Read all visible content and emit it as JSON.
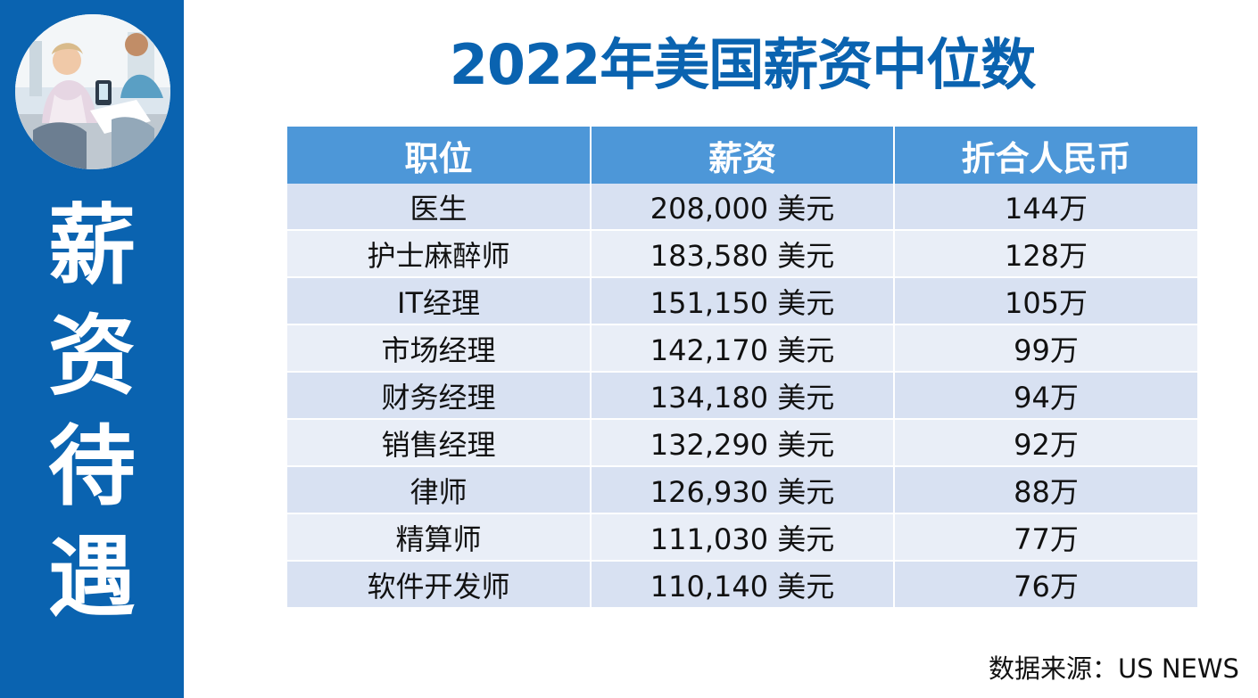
{
  "sidebar": {
    "title_chars": [
      "薪",
      "资",
      "待",
      "遇"
    ]
  },
  "page": {
    "title": "2022年美国薪资中位数"
  },
  "table": {
    "headers": [
      "职位",
      "薪资",
      "折合人民币"
    ],
    "rows": [
      [
        "医生",
        "208,000 美元",
        "144万"
      ],
      [
        "护士麻醉师",
        "183,580 美元",
        "128万"
      ],
      [
        "IT经理",
        "151,150 美元",
        "105万"
      ],
      [
        "市场经理",
        "142,170 美元",
        "99万"
      ],
      [
        "财务经理",
        "134,180 美元",
        "94万"
      ],
      [
        "销售经理",
        "132,290 美元",
        "92万"
      ],
      [
        "律师",
        "126,930 美元",
        "88万"
      ],
      [
        "精算师",
        "111,030 美元",
        "77万"
      ],
      [
        "软件开发师",
        "110,140 美元",
        "76万"
      ]
    ]
  },
  "footer": {
    "source": "数据来源：US NEWS"
  },
  "colors": {
    "sidebar": "#0a63b0",
    "header": "#4d97d8",
    "row_odd": "#d8e1f2",
    "row_even": "#e9eef7",
    "title": "#0a63b0"
  }
}
